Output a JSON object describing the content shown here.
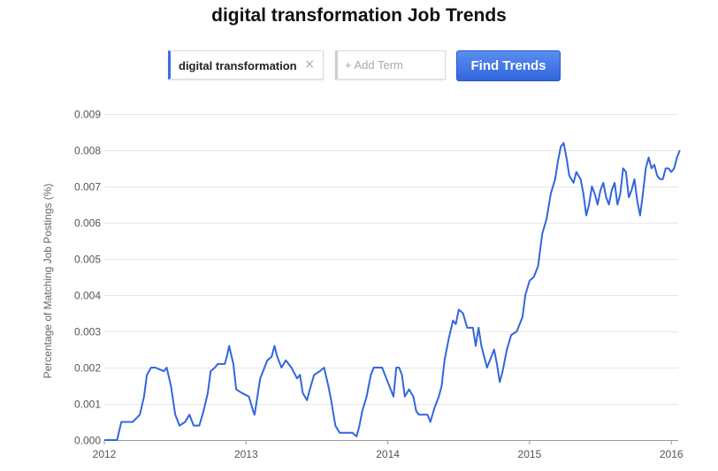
{
  "page": {
    "title": "digital transformation Job Trends"
  },
  "search": {
    "term": "digital transformation",
    "remove_icon": "×",
    "add_placeholder": "+ Add Term",
    "find_label": "Find Trends"
  },
  "colors": {
    "line": "#3366dd",
    "button": "#3f74e6",
    "term_accent": "#3d6fe0"
  },
  "chart_data": {
    "type": "line",
    "title": "",
    "ylabel": "Percentage of Matching Job Postings (%)",
    "xlabel": "",
    "ylim": [
      0,
      0.009
    ],
    "xlim": [
      2012.0,
      2016.07
    ],
    "y_ticks": [
      "0.000",
      "0.001",
      "0.002",
      "0.003",
      "0.004",
      "0.005",
      "0.006",
      "0.007",
      "0.008",
      "0.009"
    ],
    "x_ticks": [
      {
        "value": 2012,
        "label": "2012"
      },
      {
        "value": 2013,
        "label": "2013"
      },
      {
        "value": 2014,
        "label": "2014"
      },
      {
        "value": 2015,
        "label": "2015"
      },
      {
        "value": 2016,
        "label": "2016"
      }
    ],
    "grid": true,
    "series": [
      {
        "name": "digital transformation",
        "points": [
          [
            2012.0,
            0.0
          ],
          [
            2012.09,
            0.0
          ],
          [
            2012.12,
            0.0005
          ],
          [
            2012.2,
            0.0005
          ],
          [
            2012.25,
            0.0007
          ],
          [
            2012.28,
            0.0012
          ],
          [
            2012.3,
            0.0018
          ],
          [
            2012.33,
            0.002
          ],
          [
            2012.36,
            0.002
          ],
          [
            2012.42,
            0.0019
          ],
          [
            2012.44,
            0.002
          ],
          [
            2012.47,
            0.0015
          ],
          [
            2012.5,
            0.0007
          ],
          [
            2012.53,
            0.0004
          ],
          [
            2012.57,
            0.0005
          ],
          [
            2012.6,
            0.0007
          ],
          [
            2012.63,
            0.0004
          ],
          [
            2012.67,
            0.0004
          ],
          [
            2012.7,
            0.0008
          ],
          [
            2012.73,
            0.0013
          ],
          [
            2012.75,
            0.0019
          ],
          [
            2012.78,
            0.002
          ],
          [
            2012.8,
            0.0021
          ],
          [
            2012.85,
            0.0021
          ],
          [
            2012.8,
            0.0021
          ],
          [
            2012.87,
            0.0024
          ],
          [
            2012.88,
            0.0026
          ],
          [
            2012.91,
            0.0021
          ],
          [
            2012.93,
            0.0014
          ],
          [
            2012.97,
            0.0013
          ],
          [
            2013.02,
            0.0012
          ],
          [
            2013.05,
            0.0008
          ],
          [
            2013.06,
            0.0007
          ],
          [
            2013.08,
            0.0012
          ],
          [
            2013.1,
            0.0017
          ],
          [
            2013.13,
            0.002
          ],
          [
            2013.15,
            0.0022
          ],
          [
            2013.18,
            0.0023
          ],
          [
            2013.2,
            0.0026
          ],
          [
            2013.22,
            0.0023
          ],
          [
            2013.25,
            0.002
          ],
          [
            2013.28,
            0.0022
          ],
          [
            2013.32,
            0.002
          ],
          [
            2013.36,
            0.0017
          ],
          [
            2013.38,
            0.0018
          ],
          [
            2013.4,
            0.0013
          ],
          [
            2013.43,
            0.0011
          ],
          [
            2013.45,
            0.0014
          ],
          [
            2013.48,
            0.0018
          ],
          [
            2013.52,
            0.0019
          ],
          [
            2013.55,
            0.002
          ],
          [
            2013.58,
            0.0015
          ],
          [
            2013.6,
            0.0011
          ],
          [
            2013.63,
            0.0004
          ],
          [
            2013.66,
            0.0002
          ],
          [
            2013.7,
            0.0002
          ],
          [
            2013.75,
            0.0002
          ],
          [
            2013.78,
            0.0001
          ],
          [
            2013.8,
            0.0004
          ],
          [
            2013.82,
            0.0008
          ],
          [
            2013.85,
            0.0012
          ],
          [
            2013.88,
            0.0018
          ],
          [
            2013.9,
            0.002
          ],
          [
            2013.93,
            0.002
          ],
          [
            2013.96,
            0.002
          ],
          [
            2013.98,
            0.0018
          ],
          [
            2014.02,
            0.0014
          ],
          [
            2014.04,
            0.0012
          ],
          [
            2014.06,
            0.002
          ],
          [
            2014.08,
            0.002
          ],
          [
            2014.1,
            0.0018
          ],
          [
            2014.12,
            0.0012
          ],
          [
            2014.15,
            0.0014
          ],
          [
            2014.18,
            0.0012
          ],
          [
            2014.2,
            0.0008
          ],
          [
            2014.22,
            0.0007
          ],
          [
            2014.25,
            0.0007
          ],
          [
            2014.28,
            0.0007
          ],
          [
            2014.3,
            0.0005
          ],
          [
            2014.33,
            0.0009
          ],
          [
            2014.36,
            0.0012
          ],
          [
            2014.38,
            0.0015
          ],
          [
            2014.4,
            0.0022
          ],
          [
            2014.43,
            0.0028
          ],
          [
            2014.46,
            0.0033
          ],
          [
            2014.48,
            0.0032
          ],
          [
            2014.5,
            0.0036
          ],
          [
            2014.53,
            0.0035
          ],
          [
            2014.56,
            0.0031
          ],
          [
            2014.6,
            0.0031
          ],
          [
            2014.62,
            0.0026
          ],
          [
            2014.64,
            0.0031
          ],
          [
            2014.66,
            0.0026
          ],
          [
            2014.68,
            0.0023
          ],
          [
            2014.7,
            0.002
          ],
          [
            2014.73,
            0.0023
          ],
          [
            2014.75,
            0.0025
          ],
          [
            2014.77,
            0.0021
          ],
          [
            2014.79,
            0.0016
          ],
          [
            2014.81,
            0.0019
          ],
          [
            2014.84,
            0.0025
          ],
          [
            2014.87,
            0.0029
          ],
          [
            2014.91,
            0.003
          ],
          [
            2014.95,
            0.0034
          ],
          [
            2014.97,
            0.004
          ],
          [
            2015.0,
            0.0044
          ],
          [
            2015.03,
            0.0045
          ],
          [
            2015.06,
            0.0048
          ],
          [
            2015.09,
            0.0057
          ],
          [
            2015.12,
            0.0061
          ],
          [
            2015.15,
            0.0068
          ],
          [
            2015.18,
            0.0072
          ],
          [
            2015.2,
            0.0077
          ],
          [
            2015.22,
            0.0081
          ],
          [
            2015.24,
            0.0082
          ],
          [
            2015.26,
            0.0078
          ],
          [
            2015.28,
            0.0073
          ],
          [
            2015.31,
            0.0071
          ],
          [
            2015.33,
            0.0074
          ],
          [
            2015.36,
            0.0072
          ],
          [
            2015.38,
            0.0068
          ],
          [
            2015.4,
            0.0062
          ],
          [
            2015.42,
            0.0065
          ],
          [
            2015.44,
            0.007
          ],
          [
            2015.46,
            0.0068
          ],
          [
            2015.48,
            0.0065
          ],
          [
            2015.5,
            0.0069
          ],
          [
            2015.52,
            0.0071
          ],
          [
            2015.54,
            0.0067
          ],
          [
            2015.56,
            0.0065
          ],
          [
            2015.58,
            0.0069
          ],
          [
            2015.6,
            0.0071
          ],
          [
            2015.62,
            0.0065
          ],
          [
            2015.64,
            0.0068
          ],
          [
            2015.66,
            0.0075
          ],
          [
            2015.68,
            0.0074
          ],
          [
            2015.7,
            0.0067
          ],
          [
            2015.72,
            0.0069
          ],
          [
            2015.74,
            0.0072
          ],
          [
            2015.76,
            0.0066
          ],
          [
            2015.78,
            0.0062
          ],
          [
            2015.8,
            0.0068
          ],
          [
            2015.82,
            0.0075
          ],
          [
            2015.84,
            0.0078
          ],
          [
            2015.86,
            0.0075
          ],
          [
            2015.88,
            0.0076
          ],
          [
            2015.9,
            0.0073
          ],
          [
            2015.92,
            0.0072
          ],
          [
            2015.94,
            0.0072
          ],
          [
            2015.96,
            0.0075
          ],
          [
            2015.98,
            0.0075
          ],
          [
            2016.0,
            0.0074
          ],
          [
            2016.02,
            0.0075
          ],
          [
            2016.04,
            0.0078
          ],
          [
            2016.06,
            0.008
          ]
        ]
      }
    ]
  }
}
